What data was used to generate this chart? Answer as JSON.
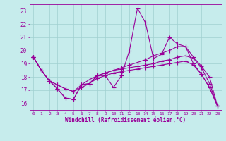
{
  "xlabel": "Windchill (Refroidissement éolien,°C)",
  "xlim": [
    -0.5,
    23.5
  ],
  "ylim": [
    15.5,
    23.5
  ],
  "yticks": [
    16,
    17,
    18,
    19,
    20,
    21,
    22,
    23
  ],
  "xticks": [
    0,
    1,
    2,
    3,
    4,
    5,
    6,
    7,
    8,
    9,
    10,
    11,
    12,
    13,
    14,
    15,
    16,
    17,
    18,
    19,
    20,
    21,
    22,
    23
  ],
  "bg_color": "#c6ecec",
  "grid_color": "#a0d0d0",
  "line_color": "#990099",
  "lines": [
    [
      19.5,
      18.5,
      17.7,
      17.1,
      16.4,
      16.3,
      17.4,
      17.5,
      18.1,
      18.1,
      17.2,
      18.1,
      20.0,
      23.2,
      22.1,
      19.4,
      19.7,
      21.0,
      20.5,
      20.3,
      19.0,
      18.2,
      17.2,
      15.8
    ],
    [
      19.5,
      18.5,
      17.7,
      17.1,
      16.4,
      16.3,
      17.4,
      17.5,
      18.1,
      18.3,
      18.5,
      18.7,
      18.9,
      19.1,
      19.3,
      19.6,
      19.8,
      20.0,
      20.3,
      20.3,
      19.5,
      18.8,
      18.0,
      15.8
    ],
    [
      19.5,
      18.5,
      17.7,
      17.4,
      17.1,
      16.9,
      17.4,
      17.8,
      18.1,
      18.3,
      18.5,
      18.6,
      18.7,
      18.8,
      18.9,
      19.0,
      19.2,
      19.3,
      19.5,
      19.6,
      19.4,
      18.7,
      17.5,
      15.8
    ],
    [
      19.5,
      18.5,
      17.7,
      17.4,
      17.1,
      16.9,
      17.2,
      17.5,
      17.9,
      18.1,
      18.3,
      18.4,
      18.5,
      18.6,
      18.7,
      18.8,
      18.9,
      19.0,
      19.1,
      19.2,
      18.9,
      18.2,
      17.2,
      15.8
    ]
  ],
  "marker": "+",
  "markersize": 4,
  "linewidth": 0.8
}
